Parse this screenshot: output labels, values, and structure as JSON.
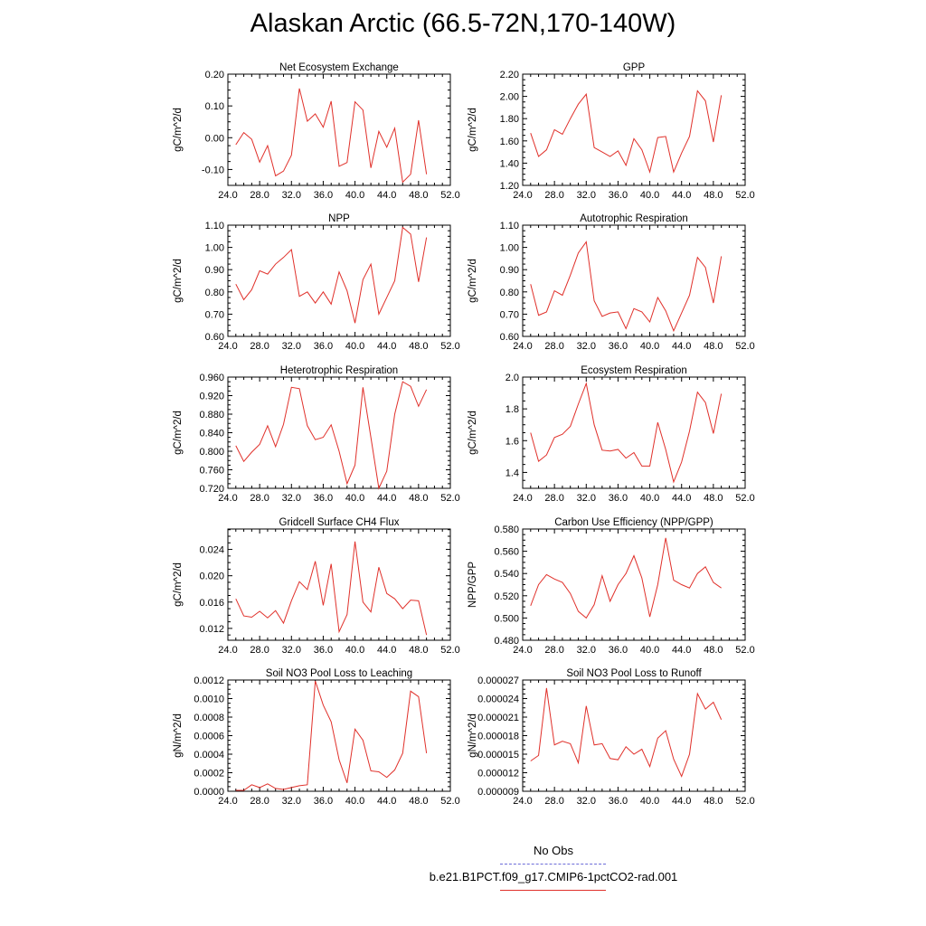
{
  "title": "Alaskan Arctic (66.5-72N,170-140W)",
  "legend": {
    "no_obs": "No Obs",
    "case": "b.e21.B1PCT.f09_g17.CMIP6-1pctCO2-rad.001",
    "no_obs_color": "#6c6cd8",
    "case_color": "#e0302a"
  },
  "chart_data": [
    {
      "type": "line",
      "title": "Net Ecosystem Exchange",
      "ylabel": "gC/m^2/d",
      "xlim": [
        24,
        52
      ],
      "ylim": [
        -0.15,
        0.2
      ],
      "xticks": [
        "24.0",
        "28.0",
        "32.0",
        "36.0",
        "40.0",
        "44.0",
        "48.0",
        "52.0"
      ],
      "yticks": [
        {
          "v": -0.1,
          "label": "-0.10"
        },
        {
          "v": 0.0,
          "label": "0.00"
        },
        {
          "v": 0.1,
          "label": "0.10"
        },
        {
          "v": 0.2,
          "label": "0.20"
        }
      ],
      "x": [
        25,
        26,
        27,
        28,
        29,
        30,
        31,
        32,
        33,
        34,
        35,
        36,
        37,
        38,
        39,
        40,
        41,
        42,
        43,
        44,
        45,
        46,
        47,
        48,
        49
      ],
      "series": [
        {
          "values": [
            -0.022,
            0.016,
            -0.005,
            -0.077,
            -0.025,
            -0.12,
            -0.105,
            -0.055,
            0.155,
            0.052,
            0.075,
            0.033,
            0.115,
            -0.09,
            -0.078,
            0.113,
            0.087,
            -0.095,
            0.02,
            -0.03,
            0.03,
            -0.14,
            -0.115,
            0.055,
            -0.115
          ],
          "color": "#e0302a"
        }
      ]
    },
    {
      "type": "line",
      "title": "GPP",
      "ylabel": "gC/m^2/d",
      "xlim": [
        24,
        52
      ],
      "ylim": [
        1.2,
        2.2
      ],
      "xticks": [
        "24.0",
        "28.0",
        "32.0",
        "36.0",
        "40.0",
        "44.0",
        "48.0",
        "52.0"
      ],
      "yticks": [
        {
          "v": 1.2,
          "label": "1.20"
        },
        {
          "v": 1.4,
          "label": "1.40"
        },
        {
          "v": 1.6,
          "label": "1.60"
        },
        {
          "v": 1.8,
          "label": "1.80"
        },
        {
          "v": 2.0,
          "label": "2.00"
        },
        {
          "v": 2.2,
          "label": "2.20"
        }
      ],
      "x": [
        25,
        26,
        27,
        28,
        29,
        30,
        31,
        32,
        33,
        34,
        35,
        36,
        37,
        38,
        39,
        40,
        41,
        42,
        43,
        44,
        45,
        46,
        47,
        48,
        49
      ],
      "series": [
        {
          "values": [
            1.67,
            1.46,
            1.52,
            1.7,
            1.66,
            1.8,
            1.93,
            2.02,
            1.54,
            1.5,
            1.46,
            1.51,
            1.38,
            1.62,
            1.52,
            1.32,
            1.63,
            1.64,
            1.32,
            1.49,
            1.64,
            2.05,
            1.96,
            1.59,
            2.01
          ],
          "color": "#e0302a"
        }
      ]
    },
    {
      "type": "line",
      "title": "NPP",
      "ylabel": "gC/m^2/d",
      "xlim": [
        24,
        52
      ],
      "ylim": [
        0.6,
        1.1
      ],
      "xticks": [
        "24.0",
        "28.0",
        "32.0",
        "36.0",
        "40.0",
        "44.0",
        "48.0",
        "52.0"
      ],
      "yticks": [
        {
          "v": 0.6,
          "label": "0.60"
        },
        {
          "v": 0.7,
          "label": "0.70"
        },
        {
          "v": 0.8,
          "label": "0.80"
        },
        {
          "v": 0.9,
          "label": "0.90"
        },
        {
          "v": 1.0,
          "label": "1.00"
        },
        {
          "v": 1.1,
          "label": "1.10"
        }
      ],
      "x": [
        25,
        26,
        27,
        28,
        29,
        30,
        31,
        32,
        33,
        34,
        35,
        36,
        37,
        38,
        39,
        40,
        41,
        42,
        43,
        44,
        45,
        46,
        47,
        48,
        49
      ],
      "series": [
        {
          "values": [
            0.835,
            0.765,
            0.81,
            0.895,
            0.88,
            0.925,
            0.955,
            0.99,
            0.78,
            0.8,
            0.75,
            0.8,
            0.745,
            0.89,
            0.805,
            0.66,
            0.855,
            0.925,
            0.7,
            0.775,
            0.85,
            1.09,
            1.06,
            0.845,
            1.045
          ],
          "color": "#e0302a"
        }
      ]
    },
    {
      "type": "line",
      "title": "Autotrophic Respiration",
      "ylabel": "gC/m^2/d",
      "xlim": [
        24,
        52
      ],
      "ylim": [
        0.6,
        1.1
      ],
      "xticks": [
        "24.0",
        "28.0",
        "32.0",
        "36.0",
        "40.0",
        "44.0",
        "48.0",
        "52.0"
      ],
      "yticks": [
        {
          "v": 0.6,
          "label": "0.60"
        },
        {
          "v": 0.7,
          "label": "0.70"
        },
        {
          "v": 0.8,
          "label": "0.80"
        },
        {
          "v": 0.9,
          "label": "0.90"
        },
        {
          "v": 1.0,
          "label": "1.00"
        },
        {
          "v": 1.1,
          "label": "1.10"
        }
      ],
      "x": [
        25,
        26,
        27,
        28,
        29,
        30,
        31,
        32,
        33,
        34,
        35,
        36,
        37,
        38,
        39,
        40,
        41,
        42,
        43,
        44,
        45,
        46,
        47,
        48,
        49
      ],
      "series": [
        {
          "values": [
            0.835,
            0.695,
            0.71,
            0.805,
            0.785,
            0.875,
            0.975,
            1.025,
            0.76,
            0.69,
            0.705,
            0.71,
            0.635,
            0.725,
            0.71,
            0.665,
            0.775,
            0.715,
            0.625,
            0.705,
            0.785,
            0.955,
            0.91,
            0.75,
            0.96
          ],
          "color": "#e0302a"
        }
      ]
    },
    {
      "type": "line",
      "title": "Heterotrophic Respiration",
      "ylabel": "gC/m^2/d",
      "xlim": [
        24,
        52
      ],
      "ylim": [
        0.72,
        0.96
      ],
      "xticks": [
        "24.0",
        "28.0",
        "32.0",
        "36.0",
        "40.0",
        "44.0",
        "48.0",
        "52.0"
      ],
      "yticks": [
        {
          "v": 0.72,
          "label": "0.720"
        },
        {
          "v": 0.76,
          "label": "0.760"
        },
        {
          "v": 0.8,
          "label": "0.800"
        },
        {
          "v": 0.84,
          "label": "0.840"
        },
        {
          "v": 0.88,
          "label": "0.880"
        },
        {
          "v": 0.92,
          "label": "0.920"
        },
        {
          "v": 0.96,
          "label": "0.960"
        }
      ],
      "x": [
        25,
        26,
        27,
        28,
        29,
        30,
        31,
        32,
        33,
        34,
        35,
        36,
        37,
        38,
        39,
        40,
        41,
        42,
        43,
        44,
        45,
        46,
        47,
        48,
        49
      ],
      "series": [
        {
          "values": [
            0.812,
            0.778,
            0.798,
            0.815,
            0.855,
            0.81,
            0.858,
            0.938,
            0.935,
            0.855,
            0.825,
            0.83,
            0.857,
            0.8,
            0.73,
            0.77,
            0.938,
            0.83,
            0.72,
            0.757,
            0.88,
            0.95,
            0.94,
            0.897,
            0.933
          ],
          "color": "#e0302a"
        }
      ]
    },
    {
      "type": "line",
      "title": "Ecosystem Respiration",
      "ylabel": "gC/m^2/d",
      "xlim": [
        24,
        52
      ],
      "ylim": [
        1.3,
        2.0
      ],
      "xticks": [
        "24.0",
        "28.0",
        "32.0",
        "36.0",
        "40.0",
        "44.0",
        "48.0",
        "52.0"
      ],
      "yticks": [
        {
          "v": 1.4,
          "label": "1.4"
        },
        {
          "v": 1.6,
          "label": "1.6"
        },
        {
          "v": 1.8,
          "label": "1.8"
        },
        {
          "v": 2.0,
          "label": "2.0"
        }
      ],
      "x": [
        25,
        26,
        27,
        28,
        29,
        30,
        31,
        32,
        33,
        34,
        35,
        36,
        37,
        38,
        39,
        40,
        41,
        42,
        43,
        44,
        45,
        46,
        47,
        48,
        49
      ],
      "series": [
        {
          "values": [
            1.65,
            1.47,
            1.51,
            1.62,
            1.64,
            1.69,
            1.83,
            1.96,
            1.7,
            1.54,
            1.535,
            1.545,
            1.49,
            1.525,
            1.44,
            1.44,
            1.715,
            1.545,
            1.34,
            1.465,
            1.66,
            1.905,
            1.84,
            1.645,
            1.895
          ],
          "color": "#e0302a"
        }
      ]
    },
    {
      "type": "line",
      "title": "Gridcell Surface CH4 Flux",
      "ylabel": "gC/m^2/d",
      "xlim": [
        24,
        52
      ],
      "ylim": [
        0.0102,
        0.0271
      ],
      "xticks": [
        "24.0",
        "28.0",
        "32.0",
        "36.0",
        "40.0",
        "44.0",
        "48.0",
        "52.0"
      ],
      "yticks": [
        {
          "v": 0.012,
          "label": "0.012"
        },
        {
          "v": 0.016,
          "label": "0.016"
        },
        {
          "v": 0.02,
          "label": "0.020"
        },
        {
          "v": 0.024,
          "label": "0.024"
        }
      ],
      "x": [
        25,
        26,
        27,
        28,
        29,
        30,
        31,
        32,
        33,
        34,
        35,
        36,
        37,
        38,
        39,
        40,
        41,
        42,
        43,
        44,
        45,
        46,
        47,
        48,
        49
      ],
      "series": [
        {
          "values": [
            0.0165,
            0.0139,
            0.0137,
            0.0146,
            0.0136,
            0.0147,
            0.0128,
            0.0162,
            0.0191,
            0.0179,
            0.0222,
            0.0155,
            0.0218,
            0.0115,
            0.0141,
            0.0252,
            0.016,
            0.0145,
            0.0213,
            0.0173,
            0.0165,
            0.015,
            0.0163,
            0.0162,
            0.011
          ],
          "color": "#e0302a"
        }
      ]
    },
    {
      "type": "line",
      "title": "Carbon Use Efficiency (NPP/GPP)",
      "ylabel": "NPP/GPP",
      "xlim": [
        24,
        52
      ],
      "ylim": [
        0.48,
        0.58
      ],
      "xticks": [
        "24.0",
        "28.0",
        "32.0",
        "36.0",
        "40.0",
        "44.0",
        "48.0",
        "52.0"
      ],
      "yticks": [
        {
          "v": 0.48,
          "label": "0.480"
        },
        {
          "v": 0.5,
          "label": "0.500"
        },
        {
          "v": 0.52,
          "label": "0.520"
        },
        {
          "v": 0.54,
          "label": "0.540"
        },
        {
          "v": 0.56,
          "label": "0.560"
        },
        {
          "v": 0.58,
          "label": "0.580"
        }
      ],
      "x": [
        25,
        26,
        27,
        28,
        29,
        30,
        31,
        32,
        33,
        34,
        35,
        36,
        37,
        38,
        39,
        40,
        41,
        42,
        43,
        44,
        45,
        46,
        47,
        48,
        49
      ],
      "series": [
        {
          "values": [
            0.511,
            0.53,
            0.539,
            0.535,
            0.532,
            0.522,
            0.506,
            0.5,
            0.512,
            0.538,
            0.515,
            0.53,
            0.54,
            0.556,
            0.536,
            0.501,
            0.53,
            0.572,
            0.534,
            0.53,
            0.527,
            0.54,
            0.546,
            0.532,
            0.527
          ],
          "color": "#e0302a"
        }
      ]
    },
    {
      "type": "line",
      "title": "Soil NO3 Pool Loss to Leaching",
      "ylabel": "gN/m^2/d",
      "xlim": [
        24,
        52
      ],
      "ylim": [
        0,
        0.0012
      ],
      "xticks": [
        "24.0",
        "28.0",
        "32.0",
        "36.0",
        "40.0",
        "44.0",
        "48.0",
        "52.0"
      ],
      "yticks": [
        {
          "v": 0.0,
          "label": "0.0000"
        },
        {
          "v": 0.0002,
          "label": "0.0002"
        },
        {
          "v": 0.0004,
          "label": "0.0004"
        },
        {
          "v": 0.0006,
          "label": "0.0006"
        },
        {
          "v": 0.0008,
          "label": "0.0008"
        },
        {
          "v": 0.001,
          "label": "0.0010"
        },
        {
          "v": 0.0012,
          "label": "0.0012"
        }
      ],
      "x": [
        25,
        26,
        27,
        28,
        29,
        30,
        31,
        32,
        33,
        34,
        35,
        36,
        37,
        38,
        39,
        40,
        41,
        42,
        43,
        44,
        45,
        46,
        47,
        48,
        49
      ],
      "series": [
        {
          "values": [
            1e-05,
            1e-05,
            7e-05,
            4e-05,
            8e-05,
            3e-05,
            2e-05,
            4e-05,
            6e-05,
            7e-05,
            0.00119,
            0.00093,
            0.00075,
            0.00034,
            9e-05,
            0.00067,
            0.00055,
            0.00022,
            0.00021,
            0.00015,
            0.00023,
            0.00041,
            0.00108,
            0.00102,
            0.00041
          ],
          "color": "#e0302a"
        }
      ]
    },
    {
      "type": "line",
      "title": "Soil NO3 Pool Loss to Runoff",
      "ylabel": "gN/m^2/d",
      "xlim": [
        24,
        52
      ],
      "ylim": [
        9e-06,
        2.7e-05
      ],
      "xticks": [
        "24.0",
        "28.0",
        "32.0",
        "36.0",
        "40.0",
        "44.0",
        "48.0",
        "52.0"
      ],
      "yticks": [
        {
          "v": 9e-06,
          "label": "0.000009"
        },
        {
          "v": 1.2e-05,
          "label": "0.000012"
        },
        {
          "v": 1.5e-05,
          "label": "0.000015"
        },
        {
          "v": 1.8e-05,
          "label": "0.000018"
        },
        {
          "v": 2.1e-05,
          "label": "0.000021"
        },
        {
          "v": 2.4e-05,
          "label": "0.000024"
        },
        {
          "v": 2.7e-05,
          "label": "0.000027"
        }
      ],
      "x": [
        25,
        26,
        27,
        28,
        29,
        30,
        31,
        32,
        33,
        34,
        35,
        36,
        37,
        38,
        39,
        40,
        41,
        42,
        43,
        44,
        45,
        46,
        47,
        48,
        49
      ],
      "series": [
        {
          "values": [
            1.39e-05,
            1.48e-05,
            2.57e-05,
            1.65e-05,
            1.71e-05,
            1.67e-05,
            1.36e-05,
            2.28e-05,
            1.65e-05,
            1.67e-05,
            1.43e-05,
            1.41e-05,
            1.62e-05,
            1.5e-05,
            1.58e-05,
            1.3e-05,
            1.76e-05,
            1.88e-05,
            1.42e-05,
            1.14e-05,
            1.5e-05,
            2.48e-05,
            2.23e-05,
            2.34e-05,
            2.06e-05
          ],
          "color": "#e0302a"
        }
      ]
    }
  ]
}
